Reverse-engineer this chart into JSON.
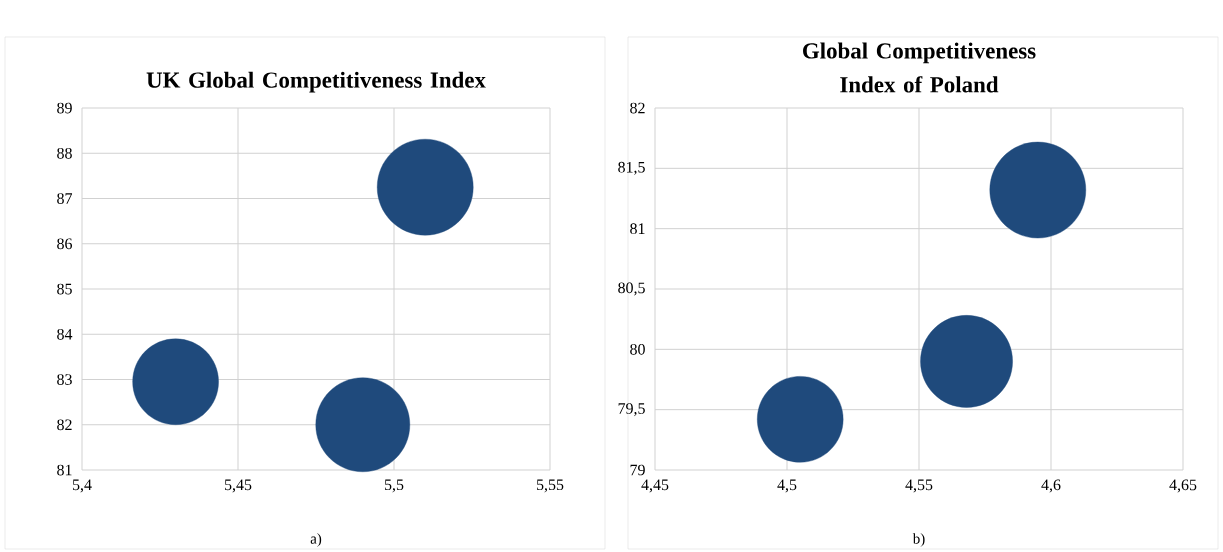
{
  "chart_data": [
    {
      "type": "bubble",
      "title": "UK Global Competitiveness Index",
      "x": [
        5.43,
        5.49,
        5.51
      ],
      "values": [
        82.95,
        82.0,
        87.25
      ],
      "sizes": [
        0.8,
        0.96,
        1
      ],
      "color": "#1f4a7c",
      "xlim": [
        5.4,
        5.55
      ],
      "xticks": [
        {
          "value": 5.4,
          "label": "5,4"
        },
        {
          "value": 5.45,
          "label": "5,45"
        },
        {
          "value": 5.5,
          "label": "5,5"
        },
        {
          "value": 5.55,
          "label": "5,55"
        }
      ],
      "ylim": [
        81,
        89
      ],
      "yticks": [
        81,
        82,
        83,
        84,
        85,
        86,
        87,
        88,
        89
      ],
      "grid": true,
      "annotations": [
        "a)"
      ]
    },
    {
      "type": "bubble",
      "title": "Global Competitiveness Index of Poland",
      "x": [
        4.505,
        4.568,
        4.595
      ],
      "values": [
        79.42,
        79.9,
        81.32
      ],
      "sizes": [
        0.8,
        0.92,
        1
      ],
      "color": "#1f4a7c",
      "xlim": [
        4.45,
        4.65
      ],
      "xticks": [
        {
          "value": 4.45,
          "label": "4,45"
        },
        {
          "value": 4.5,
          "label": "4,5"
        },
        {
          "value": 4.55,
          "label": "4,55"
        },
        {
          "value": 4.6,
          "label": "4,6"
        },
        {
          "value": 4.65,
          "label": "4,65"
        }
      ],
      "ylim": [
        79,
        82
      ],
      "yticks": [
        79,
        {
          "value": 79.5,
          "label": "79,5"
        },
        80,
        {
          "value": 80.5,
          "label": "80,5"
        },
        81,
        {
          "value": 81.5,
          "label": "81,5"
        },
        82
      ],
      "grid": true,
      "annotations": [
        "b)"
      ]
    }
  ]
}
